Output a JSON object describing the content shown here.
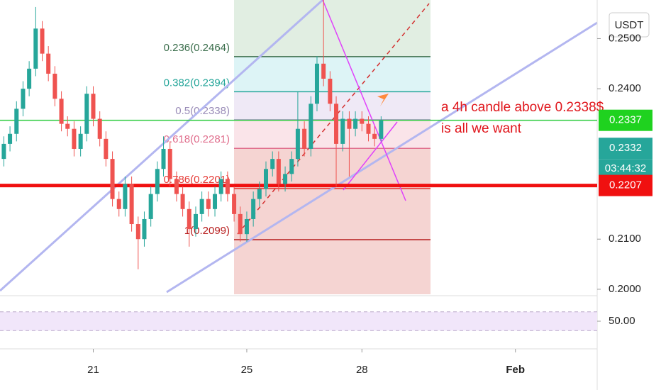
{
  "chart_data": {
    "type": "candlestick",
    "currency": "USDT",
    "x": [
      18.67,
      18.83,
      19,
      19.17,
      19.33,
      19.5,
      19.67,
      19.83,
      20,
      20.17,
      20.33,
      20.5,
      20.67,
      20.83,
      21,
      21.17,
      21.33,
      21.5,
      21.67,
      21.83,
      22,
      22.17,
      22.33,
      22.5,
      22.67,
      22.83,
      23,
      23.17,
      23.33,
      23.5,
      23.67,
      23.83,
      24,
      24.17,
      24.33,
      24.5,
      24.67,
      24.83,
      25,
      25.17,
      25.33,
      25.5,
      25.67,
      25.83,
      26,
      26.17,
      26.33,
      26.5,
      26.67,
      26.83,
      27,
      27.17,
      27.33,
      27.5,
      27.67,
      27.83,
      28,
      28.17,
      28.33,
      28.5
    ],
    "open": [
      0.226,
      0.229,
      0.231,
      0.236,
      0.24,
      0.244,
      0.252,
      0.247,
      0.243,
      0.238,
      0.233,
      0.232,
      0.228,
      0.231,
      0.239,
      0.234,
      0.23,
      0.226,
      0.218,
      0.216,
      0.221,
      0.213,
      0.21,
      0.214,
      0.219,
      0.224,
      0.228,
      0.222,
      0.219,
      0.216,
      0.212,
      0.215,
      0.218,
      0.216,
      0.219,
      0.222,
      0.219,
      0.215,
      0.211,
      0.214,
      0.218,
      0.22,
      0.224,
      0.226,
      0.221,
      0.223,
      0.226,
      0.232,
      0.228,
      0.237,
      0.245,
      0.242,
      0.237,
      0.229,
      0.234,
      0.232,
      0.234,
      0.233,
      0.231,
      0.23
    ],
    "high": [
      0.2305,
      0.2325,
      0.2375,
      0.2415,
      0.2455,
      0.2563,
      0.2535,
      0.2485,
      0.2445,
      0.2395,
      0.2345,
      0.2335,
      0.2325,
      0.2405,
      0.2405,
      0.2355,
      0.2315,
      0.2275,
      0.2195,
      0.2225,
      0.2225,
      0.2145,
      0.2155,
      0.2205,
      0.2255,
      0.2305,
      0.2295,
      0.2235,
      0.2205,
      0.2175,
      0.2165,
      0.2195,
      0.2195,
      0.2205,
      0.2235,
      0.2235,
      0.2205,
      0.2165,
      0.2155,
      0.2195,
      0.2215,
      0.2255,
      0.2275,
      0.2275,
      0.2245,
      0.2275,
      0.2395,
      0.2335,
      0.2385,
      0.2465,
      0.2577,
      0.2435,
      0.2385,
      0.2355,
      0.2355,
      0.2355,
      0.2355,
      0.2345,
      0.2325,
      0.2345
    ],
    "low": [
      0.2245,
      0.2275,
      0.2295,
      0.2345,
      0.2385,
      0.2425,
      0.2455,
      0.2415,
      0.2365,
      0.2315,
      0.2305,
      0.2265,
      0.2265,
      0.2295,
      0.2325,
      0.2285,
      0.2245,
      0.2165,
      0.2145,
      0.2145,
      0.2115,
      0.204,
      0.2085,
      0.2125,
      0.2175,
      0.2225,
      0.2205,
      0.2175,
      0.2145,
      0.2085,
      0.2105,
      0.2135,
      0.2145,
      0.2145,
      0.2175,
      0.2175,
      0.2135,
      0.2095,
      0.2095,
      0.2125,
      0.2165,
      0.2185,
      0.2225,
      0.2195,
      0.2195,
      0.2215,
      0.2245,
      0.2265,
      0.2265,
      0.2355,
      0.2405,
      0.2355,
      0.2205,
      0.2275,
      0.2225,
      0.2305,
      0.2315,
      0.2295,
      0.2285,
      0.2295
    ],
    "close": [
      0.229,
      0.231,
      0.236,
      0.24,
      0.244,
      0.252,
      0.247,
      0.243,
      0.238,
      0.233,
      0.232,
      0.228,
      0.231,
      0.239,
      0.234,
      0.23,
      0.226,
      0.218,
      0.216,
      0.221,
      0.213,
      0.21,
      0.214,
      0.219,
      0.224,
      0.228,
      0.222,
      0.219,
      0.216,
      0.212,
      0.215,
      0.218,
      0.216,
      0.219,
      0.222,
      0.219,
      0.215,
      0.211,
      0.214,
      0.218,
      0.22,
      0.224,
      0.226,
      0.221,
      0.223,
      0.226,
      0.232,
      0.228,
      0.237,
      0.245,
      0.242,
      0.237,
      0.229,
      0.234,
      0.232,
      0.234,
      0.233,
      0.231,
      0.23,
      0.2337
    ],
    "up_color": "#26a69a",
    "down_color": "#ef5350",
    "xlim": [
      18.57,
      34.13
    ],
    "xticks": [
      21,
      25,
      28,
      {
        "value": 32,
        "label": "Feb"
      }
    ],
    "ylim": [
      0.199,
      0.2577
    ],
    "yticks": [
      {
        "value": 0.2,
        "label": "0.2000"
      },
      {
        "value": 0.21,
        "label": "0.2100"
      },
      {
        "value": 0.24,
        "label": "0.2400"
      },
      {
        "value": 0.25,
        "label": "0.2500"
      }
    ],
    "fib_levels": [
      {
        "label": "0.236(0.2464)",
        "value": 0.2464,
        "color": "#3b6e4c",
        "fill": "#d9eadb"
      },
      {
        "label": "0.382(0.2394)",
        "value": 0.2394,
        "color": "#26a69a",
        "fill": "#d4f1f4"
      },
      {
        "label": "0.5(0.2338)",
        "value": 0.2338,
        "color": "#9a8cb8",
        "fill": "#ebe3f4"
      },
      {
        "label": "0.618(0.2281)",
        "value": 0.2281,
        "color": "#e06d8c",
        "fill": "#f9dde3"
      },
      {
        "label": "0.786(0.2201)",
        "value": 0.2201,
        "color": "#e53935",
        "fill": "#f3c9c7"
      },
      {
        "label": "1(0.2099)",
        "value": 0.2099,
        "color": "#b71c1c",
        "fill": "#f3c9c7"
      }
    ],
    "levels": [
      {
        "value": 0.2337,
        "color": "#2ecc40"
      },
      {
        "value": 0.2207,
        "color": "#f01010"
      }
    ],
    "price_labels": [
      {
        "label": "0.2337",
        "value": 0.2337,
        "color": "#1fd21f"
      },
      {
        "label": "0.2332",
        "value": 0.2332,
        "color": "#26a69a"
      },
      {
        "label": "0.2207",
        "value": 0.2207,
        "color": "#f01010"
      }
    ],
    "countdown": "03:44:32",
    "annotation": [
      "a 4h candle above 0.2338$",
      "is all we want"
    ],
    "rsi": {
      "ylim": [
        0,
        100
      ],
      "yticks": [
        {
          "value": 50,
          "label": "50.00"
        }
      ]
    }
  }
}
